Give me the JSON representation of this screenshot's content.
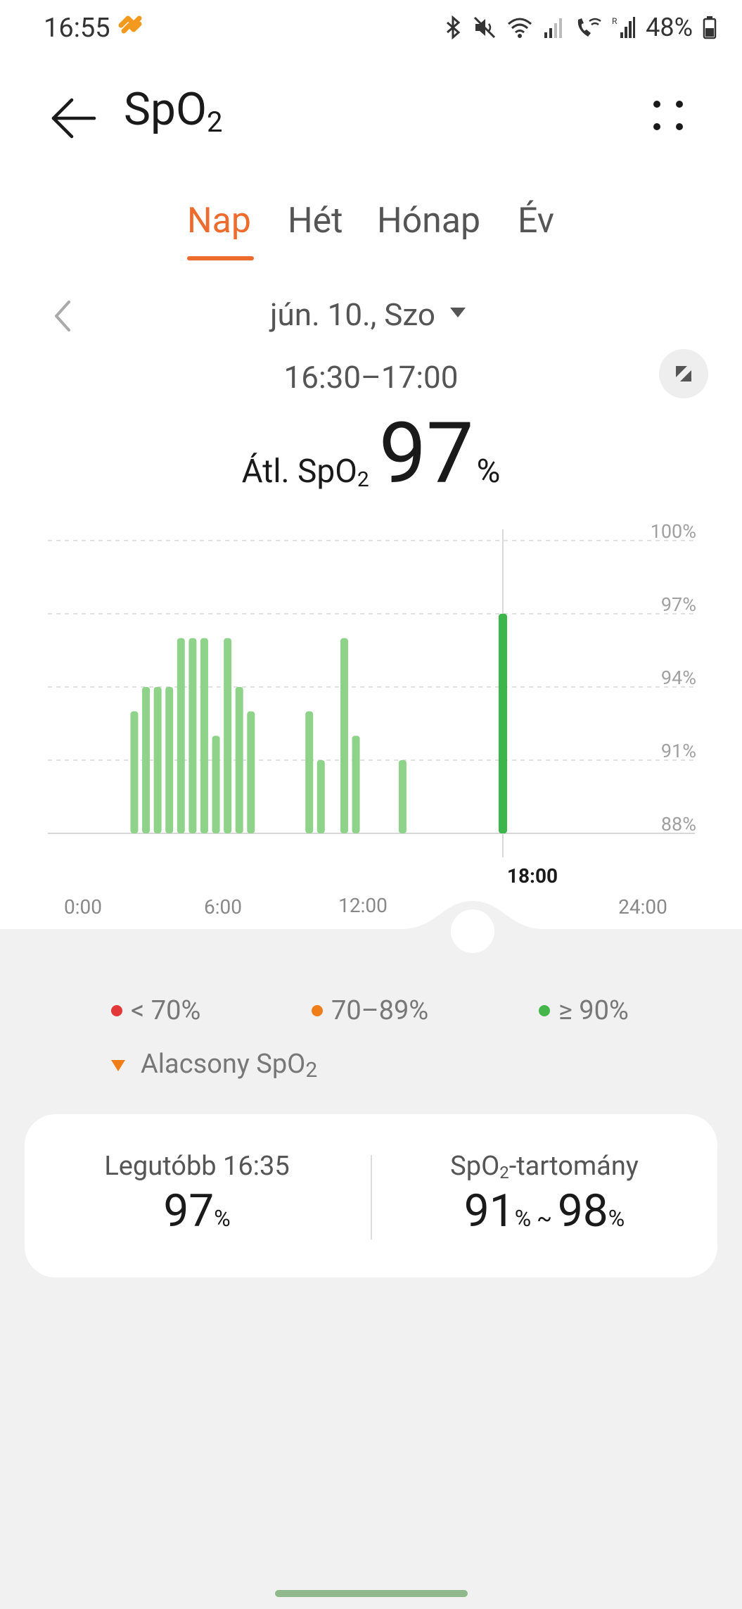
{
  "status": {
    "time": "16:55",
    "battery": "48%",
    "icons": [
      "bluetooth-icon",
      "mute-icon",
      "wifi-icon",
      "signal-icon",
      "wifi-calling-icon",
      "roaming-signal-icon",
      "battery-icon"
    ]
  },
  "header": {
    "title_main": "SpO",
    "title_sub": "2"
  },
  "tabs": [
    {
      "label": "Nap",
      "active": true
    },
    {
      "label": "Hét",
      "active": false
    },
    {
      "label": "Hónap",
      "active": false
    },
    {
      "label": "Év",
      "active": false
    }
  ],
  "date_nav": {
    "date": "jún. 10., Szo"
  },
  "summary": {
    "time_range": "16:30–17:00",
    "avg_label_main": "Átl. SpO",
    "avg_label_sub": "2",
    "avg_value": "97",
    "avg_unit": "%"
  },
  "chart_data": {
    "type": "bar",
    "y_ticks": [
      "100%",
      "97%",
      "94%",
      "91%",
      "88%"
    ],
    "ylim": [
      88,
      100
    ],
    "x_ticks": [
      "0:00",
      "6:00",
      "12:00",
      "24:00"
    ],
    "selected_time_label": "18:00",
    "x_hours": [
      2.2,
      2.7,
      3.2,
      3.7,
      4.2,
      4.7,
      5.2,
      5.7,
      6.2,
      6.7,
      7.2,
      9.7,
      10.2,
      11.2,
      11.7,
      13.7,
      18.0
    ],
    "values": [
      93,
      94,
      94,
      94,
      96,
      96,
      96,
      92,
      96,
      94,
      93,
      93,
      91,
      96,
      92,
      91,
      97
    ],
    "selected_index": 16,
    "colors": {
      "normal": "#8fd38a",
      "selected": "#3cb54a"
    }
  },
  "legend": [
    {
      "label": "< 70%",
      "color": "#e23838"
    },
    {
      "label": "70–89%",
      "color": "#ef7d1a"
    },
    {
      "label": "≥ 90%",
      "color": "#45b649"
    }
  ],
  "legend_low": {
    "label_main": "Alacsony SpO",
    "label_sub": "2",
    "color": "#ef7d1a"
  },
  "stats": {
    "latest_label": "Legutóbb 16:35",
    "latest_value": "97",
    "latest_unit": "%",
    "range_label_main": "SpO",
    "range_label_sub": "2",
    "range_label_rest": "-tartomány",
    "range_min": "91",
    "range_sep": " ~ ",
    "range_max": "98",
    "range_unit": "%"
  },
  "colors": {
    "accent": "#ec6b2d",
    "background": "#f1f1f1"
  }
}
